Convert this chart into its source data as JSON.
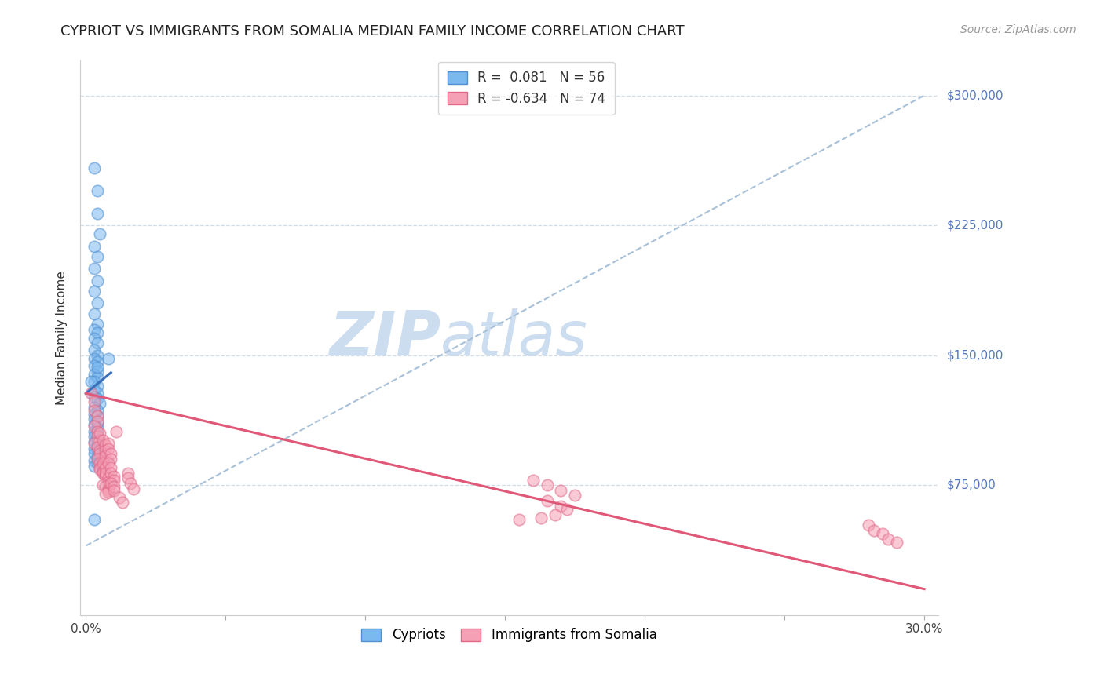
{
  "title": "CYPRIOT VS IMMIGRANTS FROM SOMALIA MEDIAN FAMILY INCOME CORRELATION CHART",
  "source": "Source: ZipAtlas.com",
  "ylabel": "Median Family Income",
  "y_tick_labels": [
    "$75,000",
    "$150,000",
    "$225,000",
    "$300,000"
  ],
  "y_tick_values": [
    75000,
    150000,
    225000,
    300000
  ],
  "y_max": 320000,
  "y_min": 0,
  "x_min": -0.002,
  "x_max": 0.305,
  "watermark_zip": "ZIP",
  "watermark_atlas": "atlas",
  "blue_scatter_x": [
    0.003,
    0.004,
    0.004,
    0.005,
    0.003,
    0.004,
    0.003,
    0.004,
    0.003,
    0.004,
    0.003,
    0.004,
    0.003,
    0.004,
    0.003,
    0.004,
    0.003,
    0.004,
    0.003,
    0.004,
    0.003,
    0.004,
    0.003,
    0.004,
    0.003,
    0.004,
    0.003,
    0.004,
    0.003,
    0.004,
    0.005,
    0.003,
    0.004,
    0.003,
    0.004,
    0.003,
    0.004,
    0.003,
    0.004,
    0.003,
    0.004,
    0.003,
    0.004,
    0.003,
    0.004,
    0.003,
    0.004,
    0.003,
    0.004,
    0.003,
    0.004,
    0.003,
    0.008,
    0.004,
    0.003,
    0.002
  ],
  "blue_scatter_y": [
    258000,
    245000,
    232000,
    220000,
    213000,
    207000,
    200000,
    193000,
    187000,
    180000,
    174000,
    168000,
    165000,
    163000,
    160000,
    157000,
    153000,
    150000,
    148000,
    146000,
    144000,
    141000,
    139000,
    137000,
    135000,
    132000,
    130000,
    128000,
    126000,
    125000,
    122000,
    120000,
    118000,
    116000,
    115000,
    113000,
    111000,
    110000,
    108000,
    106000,
    105000,
    103000,
    101000,
    100000,
    98000,
    96000,
    95000,
    93000,
    91000,
    89000,
    88000,
    86000,
    148000,
    143000,
    55000,
    135000
  ],
  "pink_scatter_x": [
    0.002,
    0.003,
    0.003,
    0.004,
    0.004,
    0.003,
    0.004,
    0.004,
    0.005,
    0.003,
    0.004,
    0.005,
    0.005,
    0.006,
    0.004,
    0.005,
    0.006,
    0.006,
    0.005,
    0.005,
    0.006,
    0.006,
    0.007,
    0.007,
    0.005,
    0.006,
    0.007,
    0.007,
    0.007,
    0.006,
    0.007,
    0.007,
    0.008,
    0.008,
    0.006,
    0.007,
    0.008,
    0.008,
    0.008,
    0.007,
    0.008,
    0.008,
    0.009,
    0.009,
    0.008,
    0.009,
    0.009,
    0.01,
    0.01,
    0.009,
    0.01,
    0.01,
    0.011,
    0.012,
    0.013,
    0.015,
    0.015,
    0.016,
    0.017,
    0.155,
    0.16,
    0.165,
    0.17,
    0.175,
    0.165,
    0.17,
    0.172,
    0.168,
    0.163,
    0.28,
    0.282,
    0.285,
    0.287,
    0.29
  ],
  "pink_scatter_y": [
    128000,
    123000,
    118000,
    115000,
    112000,
    109000,
    106000,
    103000,
    101000,
    99000,
    97000,
    95000,
    93000,
    91000,
    90000,
    88000,
    87000,
    86000,
    85000,
    84000,
    83000,
    82000,
    81000,
    80000,
    105000,
    101000,
    98000,
    95000,
    92000,
    88000,
    85000,
    82000,
    79000,
    77000,
    75000,
    74000,
    73000,
    72000,
    71000,
    70000,
    99000,
    96000,
    93000,
    90000,
    88000,
    85000,
    82000,
    80000,
    78000,
    76000,
    74000,
    72000,
    106000,
    68000,
    65000,
    82000,
    79000,
    76000,
    73000,
    55000,
    78000,
    75000,
    72000,
    69000,
    66000,
    63000,
    61000,
    58000,
    56000,
    52000,
    49000,
    47000,
    44000,
    42000
  ],
  "blue_line_x": [
    0.0,
    0.009
  ],
  "blue_line_y": [
    128000,
    140000
  ],
  "gray_dash_line_x": [
    0.0,
    0.3
  ],
  "gray_dash_line_y": [
    40000,
    300000
  ],
  "pink_line_x": [
    0.0,
    0.3
  ],
  "pink_line_y": [
    128000,
    15000
  ],
  "scatter_alpha": 0.55,
  "scatter_size": 110,
  "scatter_lw": 1.2,
  "blue_color": "#7ab8f0",
  "blue_edge": "#5090d0",
  "pink_color": "#f5a0b5",
  "pink_edge": "#e06888",
  "blue_line_color": "#3a6fba",
  "gray_dash_color": "#a8c0d8",
  "pink_line_color": "#e05878",
  "grid_color": "#d0dce8",
  "tick_label_color": "#5577bb",
  "background_color": "#ffffff",
  "title_fontsize": 13,
  "source_fontsize": 10,
  "ylabel_fontsize": 11,
  "tick_fontsize": 11,
  "legend_fontsize": 12,
  "watermark_color": "#ccddf0",
  "watermark_fontsize_zip": 56,
  "watermark_fontsize_atlas": 56
}
